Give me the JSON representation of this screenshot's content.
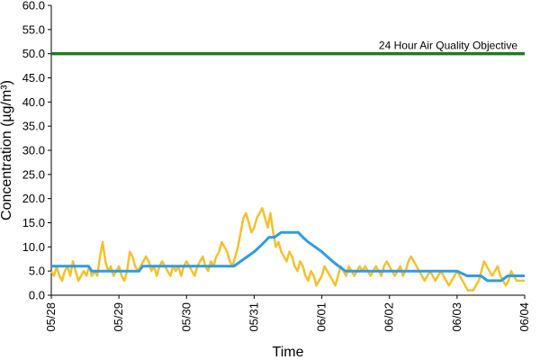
{
  "chart_data": {
    "type": "line",
    "title": "",
    "xlabel": "Time",
    "ylabel": "Concentration (µg/m³)",
    "ylim": [
      0,
      60
    ],
    "y_ticks": [
      "0.0",
      "5.0",
      "10.0",
      "15.0",
      "20.0",
      "25.0",
      "30.0",
      "35.0",
      "40.0",
      "45.0",
      "50.0",
      "55.0",
      "60.0"
    ],
    "x_ticks": [
      "05/28",
      "05/29",
      "05/30",
      "05/31",
      "06/01",
      "06/02",
      "06/03",
      "06/04"
    ],
    "x_range_days": [
      0,
      7
    ],
    "grid": false,
    "colors": {
      "hourly": "#f2c12e",
      "rolling24h": "#2f9ce6",
      "objective": "#1f7a1f"
    },
    "objective": {
      "value": 50,
      "label": "24 Hour Air Quality Objective"
    },
    "series": [
      {
        "values_hourly_day_and_value": [
          [
            0.0,
            5
          ],
          [
            0.04,
            4
          ],
          [
            0.08,
            6
          ],
          [
            0.12,
            4
          ],
          [
            0.16,
            3
          ],
          [
            0.2,
            5
          ],
          [
            0.24,
            6
          ],
          [
            0.28,
            4
          ],
          [
            0.32,
            7
          ],
          [
            0.36,
            5
          ],
          [
            0.4,
            3
          ],
          [
            0.44,
            4
          ],
          [
            0.48,
            5
          ],
          [
            0.52,
            4
          ],
          [
            0.56,
            6
          ],
          [
            0.6,
            4
          ],
          [
            0.64,
            5
          ],
          [
            0.68,
            4
          ],
          [
            0.72,
            8
          ],
          [
            0.76,
            11
          ],
          [
            0.8,
            7
          ],
          [
            0.84,
            5
          ],
          [
            0.88,
            6
          ],
          [
            0.92,
            4
          ],
          [
            0.96,
            5
          ],
          [
            1.0,
            6
          ],
          [
            1.04,
            4
          ],
          [
            1.08,
            3
          ],
          [
            1.12,
            5
          ],
          [
            1.16,
            9
          ],
          [
            1.2,
            8
          ],
          [
            1.24,
            6
          ],
          [
            1.28,
            5
          ],
          [
            1.32,
            6
          ],
          [
            1.36,
            7
          ],
          [
            1.4,
            8
          ],
          [
            1.44,
            7
          ],
          [
            1.48,
            5
          ],
          [
            1.52,
            6
          ],
          [
            1.56,
            4
          ],
          [
            1.6,
            6
          ],
          [
            1.64,
            7
          ],
          [
            1.68,
            6
          ],
          [
            1.72,
            5
          ],
          [
            1.76,
            4
          ],
          [
            1.8,
            6
          ],
          [
            1.84,
            5
          ],
          [
            1.88,
            6
          ],
          [
            1.92,
            4
          ],
          [
            1.96,
            6
          ],
          [
            2.0,
            7
          ],
          [
            2.04,
            6
          ],
          [
            2.08,
            5
          ],
          [
            2.12,
            4
          ],
          [
            2.16,
            6
          ],
          [
            2.2,
            7
          ],
          [
            2.24,
            8
          ],
          [
            2.28,
            6
          ],
          [
            2.32,
            5
          ],
          [
            2.36,
            7
          ],
          [
            2.4,
            6
          ],
          [
            2.44,
            8
          ],
          [
            2.48,
            9
          ],
          [
            2.52,
            11
          ],
          [
            2.56,
            10
          ],
          [
            2.6,
            9
          ],
          [
            2.64,
            7
          ],
          [
            2.68,
            6
          ],
          [
            2.72,
            8
          ],
          [
            2.76,
            10
          ],
          [
            2.8,
            13
          ],
          [
            2.84,
            16
          ],
          [
            2.88,
            17
          ],
          [
            2.92,
            15
          ],
          [
            2.96,
            13
          ],
          [
            3.0,
            14
          ],
          [
            3.04,
            16
          ],
          [
            3.08,
            17
          ],
          [
            3.12,
            18
          ],
          [
            3.16,
            16
          ],
          [
            3.2,
            14
          ],
          [
            3.24,
            17
          ],
          [
            3.28,
            13
          ],
          [
            3.32,
            10
          ],
          [
            3.36,
            11
          ],
          [
            3.4,
            9
          ],
          [
            3.44,
            8
          ],
          [
            3.48,
            7
          ],
          [
            3.52,
            9
          ],
          [
            3.56,
            8
          ],
          [
            3.6,
            6
          ],
          [
            3.64,
            5
          ],
          [
            3.68,
            7
          ],
          [
            3.72,
            6
          ],
          [
            3.76,
            4
          ],
          [
            3.8,
            3
          ],
          [
            3.84,
            5
          ],
          [
            3.88,
            4
          ],
          [
            3.92,
            2
          ],
          [
            3.96,
            3
          ],
          [
            4.0,
            4
          ],
          [
            4.04,
            6
          ],
          [
            4.08,
            5
          ],
          [
            4.12,
            4
          ],
          [
            4.16,
            3
          ],
          [
            4.2,
            2
          ],
          [
            4.24,
            4
          ],
          [
            4.28,
            6
          ],
          [
            4.32,
            5
          ],
          [
            4.36,
            4
          ],
          [
            4.4,
            6
          ],
          [
            4.44,
            5
          ],
          [
            4.48,
            4
          ],
          [
            4.52,
            5
          ],
          [
            4.56,
            6
          ],
          [
            4.6,
            5
          ],
          [
            4.64,
            6
          ],
          [
            4.68,
            5
          ],
          [
            4.72,
            4
          ],
          [
            4.76,
            5
          ],
          [
            4.8,
            6
          ],
          [
            4.84,
            5
          ],
          [
            4.88,
            4
          ],
          [
            4.92,
            6
          ],
          [
            4.96,
            7
          ],
          [
            5.0,
            6
          ],
          [
            5.04,
            5
          ],
          [
            5.08,
            4
          ],
          [
            5.12,
            5
          ],
          [
            5.16,
            6
          ],
          [
            5.2,
            4
          ],
          [
            5.24,
            5
          ],
          [
            5.28,
            7
          ],
          [
            5.32,
            8
          ],
          [
            5.36,
            7
          ],
          [
            5.4,
            6
          ],
          [
            5.44,
            5
          ],
          [
            5.48,
            4
          ],
          [
            5.52,
            3
          ],
          [
            5.56,
            4
          ],
          [
            5.6,
            5
          ],
          [
            5.64,
            4
          ],
          [
            5.68,
            3
          ],
          [
            5.72,
            4
          ],
          [
            5.76,
            5
          ],
          [
            5.8,
            4
          ],
          [
            5.84,
            3
          ],
          [
            5.88,
            2
          ],
          [
            5.92,
            3
          ],
          [
            5.96,
            4
          ],
          [
            6.0,
            5
          ],
          [
            6.04,
            4
          ],
          [
            6.08,
            3
          ],
          [
            6.12,
            2
          ],
          [
            6.16,
            1
          ],
          [
            6.2,
            1
          ],
          [
            6.24,
            1
          ],
          [
            6.28,
            2
          ],
          [
            6.32,
            3
          ],
          [
            6.36,
            5
          ],
          [
            6.4,
            7
          ],
          [
            6.44,
            6
          ],
          [
            6.48,
            5
          ],
          [
            6.52,
            4
          ],
          [
            6.56,
            5
          ],
          [
            6.6,
            6
          ],
          [
            6.64,
            4
          ],
          [
            6.68,
            3
          ],
          [
            6.72,
            2
          ],
          [
            6.76,
            3
          ],
          [
            6.8,
            5
          ],
          [
            6.84,
            4
          ],
          [
            6.88,
            3
          ],
          [
            6.92,
            3
          ],
          [
            6.96,
            3
          ],
          [
            7.0,
            3
          ]
        ]
      },
      {
        "values_hourly_day_and_value": [
          [
            0.0,
            6
          ],
          [
            0.2,
            6
          ],
          [
            0.4,
            6
          ],
          [
            0.55,
            6
          ],
          [
            0.6,
            5
          ],
          [
            0.8,
            5
          ],
          [
            1.0,
            5
          ],
          [
            1.2,
            5
          ],
          [
            1.3,
            5
          ],
          [
            1.35,
            6
          ],
          [
            1.6,
            6
          ],
          [
            1.9,
            6
          ],
          [
            2.1,
            6
          ],
          [
            2.3,
            6
          ],
          [
            2.5,
            6
          ],
          [
            2.65,
            6
          ],
          [
            2.7,
            6
          ],
          [
            2.8,
            7
          ],
          [
            2.9,
            8
          ],
          [
            3.0,
            9
          ],
          [
            3.08,
            10
          ],
          [
            3.15,
            11
          ],
          [
            3.22,
            12
          ],
          [
            3.3,
            12
          ],
          [
            3.4,
            13
          ],
          [
            3.55,
            13
          ],
          [
            3.65,
            13
          ],
          [
            3.72,
            12
          ],
          [
            3.8,
            11
          ],
          [
            3.9,
            10
          ],
          [
            4.0,
            9
          ],
          [
            4.08,
            8
          ],
          [
            4.16,
            7
          ],
          [
            4.25,
            6
          ],
          [
            4.35,
            5
          ],
          [
            4.5,
            5
          ],
          [
            4.7,
            5
          ],
          [
            5.0,
            5
          ],
          [
            5.2,
            5
          ],
          [
            5.4,
            5
          ],
          [
            5.6,
            5
          ],
          [
            5.8,
            5
          ],
          [
            6.0,
            5
          ],
          [
            6.15,
            4
          ],
          [
            6.35,
            4
          ],
          [
            6.45,
            3
          ],
          [
            6.55,
            3
          ],
          [
            6.65,
            3
          ],
          [
            6.75,
            4
          ],
          [
            6.9,
            4
          ],
          [
            7.0,
            4
          ]
        ]
      }
    ]
  }
}
